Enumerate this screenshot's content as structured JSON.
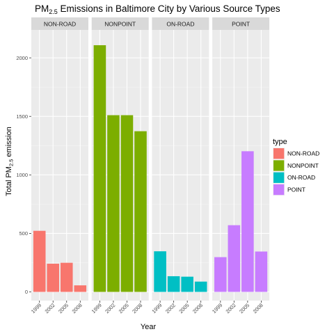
{
  "chart_data": {
    "type": "bar",
    "title_main": "PM",
    "title_sub": "2.5",
    "title_rest": " Emissions in Baltimore City by Various Source Types",
    "xlabel": "Year",
    "ylabel_main": "Total PM",
    "ylabel_sub": "2.5",
    "ylabel_rest": " emission",
    "categories": [
      "1999",
      "2002",
      "2005",
      "2008"
    ],
    "ylim": [
      0,
      2200
    ],
    "yticks": [
      0,
      500,
      1000,
      1500,
      2000
    ],
    "grid": true,
    "legend": {
      "title": "type",
      "position": "right",
      "entries": [
        "NON-ROAD",
        "NONPOINT",
        "ON-ROAD",
        "POINT"
      ]
    },
    "facets": [
      {
        "name": "NON-ROAD",
        "color": "#F8766D",
        "values": [
          522,
          241,
          249,
          56
        ]
      },
      {
        "name": "NONPOINT",
        "color": "#7CAE00",
        "values": [
          2108,
          1510,
          1510,
          1373
        ]
      },
      {
        "name": "ON-ROAD",
        "color": "#00BFC4",
        "values": [
          347,
          134,
          130,
          88
        ]
      },
      {
        "name": "POINT",
        "color": "#C77CFF",
        "values": [
          297,
          570,
          1202,
          345
        ]
      }
    ]
  }
}
